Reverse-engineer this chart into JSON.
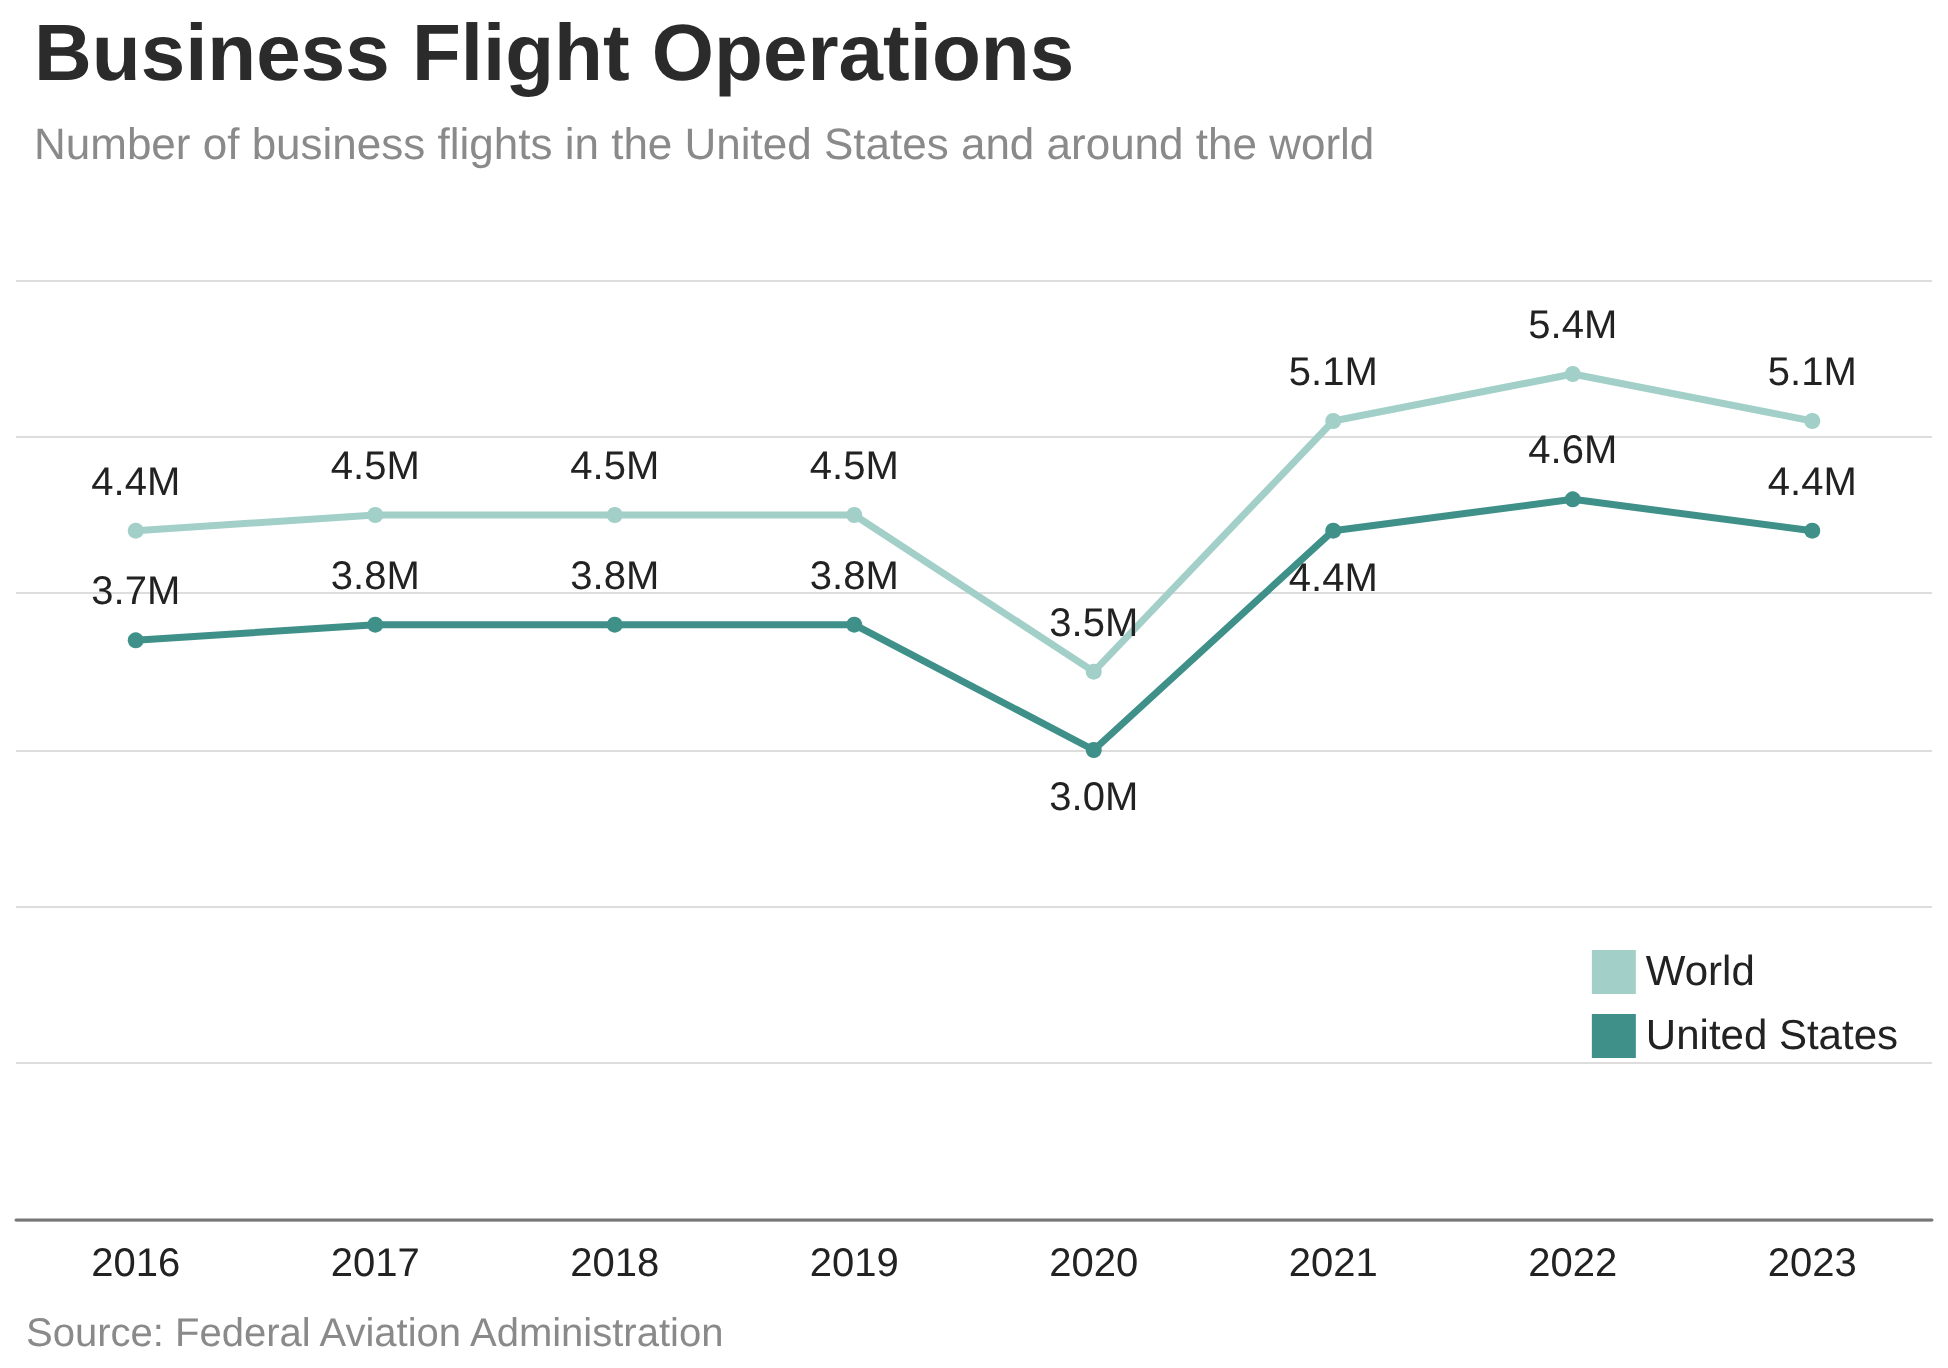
{
  "chart_data": {
    "type": "line",
    "title": "Business Flight Operations",
    "subtitle": "Number of business flights in the United States and around the world",
    "categories": [
      "2016",
      "2017",
      "2018",
      "2019",
      "2020",
      "2021",
      "2022",
      "2023"
    ],
    "series": [
      {
        "name": "World",
        "color": "#a3cfc9",
        "values": [
          4.4,
          4.5,
          4.5,
          4.5,
          3.5,
          5.1,
          5.4,
          5.1
        ],
        "value_labels": [
          "4.4M",
          "4.5M",
          "4.5M",
          "4.5M",
          "3.5M",
          "5.1M",
          "5.4M",
          "5.1M"
        ]
      },
      {
        "name": "United States",
        "color": "#3f9089",
        "values": [
          3.7,
          3.8,
          3.8,
          3.8,
          3.0,
          4.4,
          4.6,
          4.4
        ],
        "value_labels": [
          "3.7M",
          "3.8M",
          "3.8M",
          "3.8M",
          "3.0M",
          "4.4M",
          "4.6M",
          "4.4M"
        ]
      }
    ],
    "ylim": [
      0,
      6
    ],
    "yticks": [
      {
        "value": 0,
        "label": null
      },
      {
        "value": 1,
        "label": null
      },
      {
        "value": 2,
        "label": null
      },
      {
        "value": 3,
        "label": null
      },
      {
        "value": 4,
        "label": null
      },
      {
        "value": 5,
        "label": null
      },
      {
        "value": 6,
        "label": null
      }
    ],
    "tick_labels": "x",
    "grid": "y",
    "legend": "bottom right",
    "marker": "circle",
    "line_style": "solid",
    "annotations": [
      "Source: Federal Aviation Administration"
    ]
  }
}
